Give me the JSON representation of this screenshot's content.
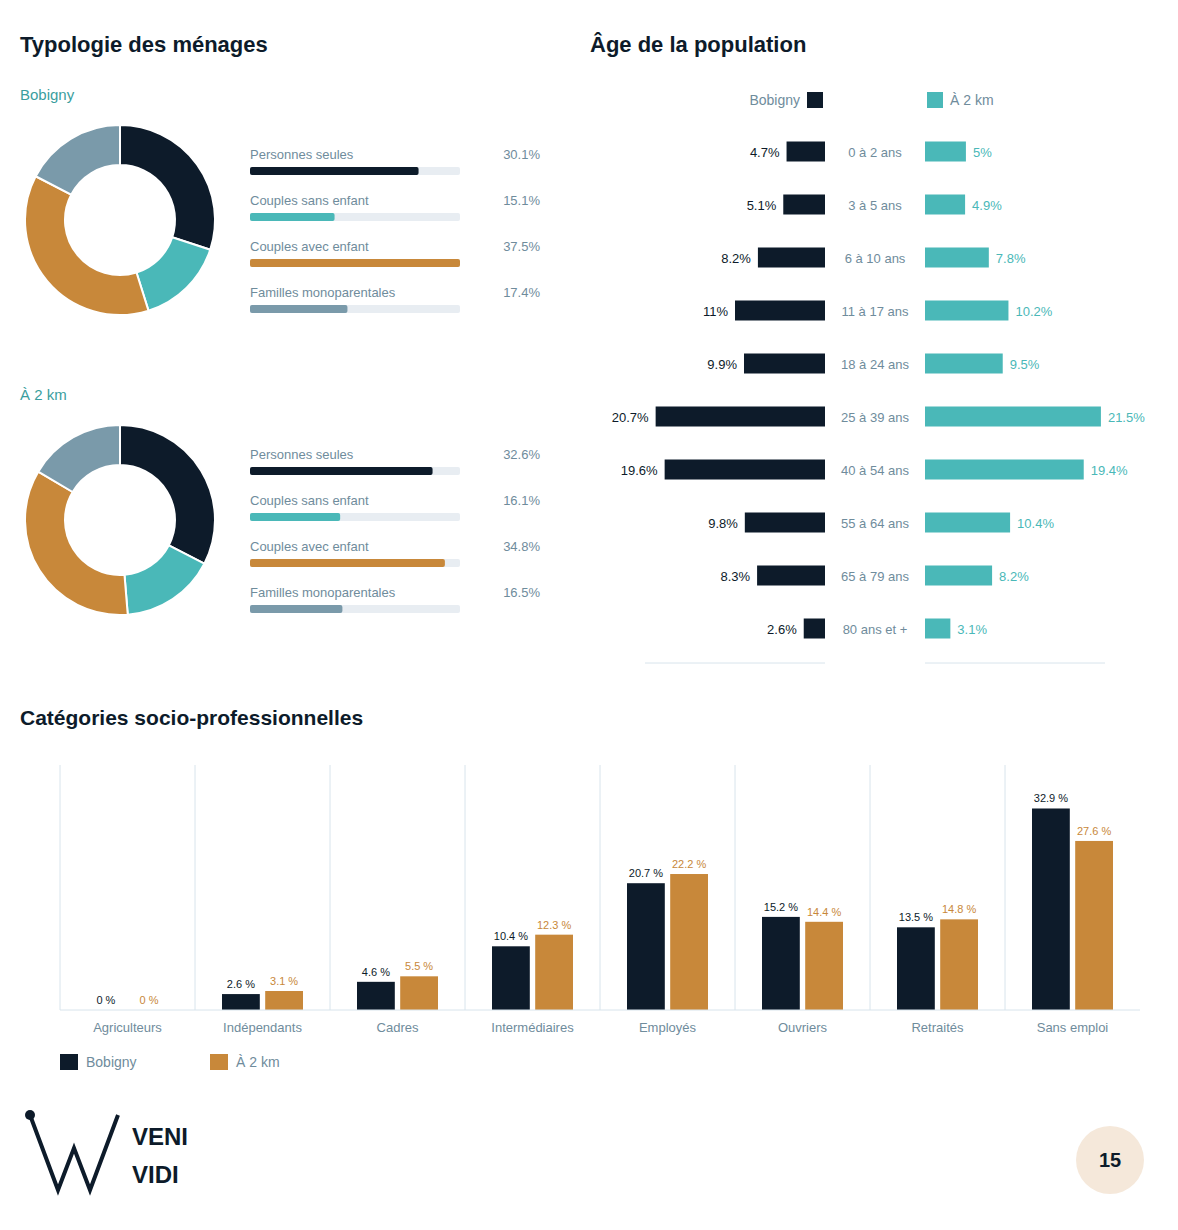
{
  "chart_data": [
    {
      "type": "donut",
      "title": "Typologie des ménages",
      "subtitle": "Bobigny",
      "categories": [
        "Personnes seules",
        "Couples sans enfant",
        "Couples avec enfant",
        "Familles monoparentales"
      ],
      "values": [
        30.1,
        15.1,
        37.5,
        17.4
      ],
      "value_labels": [
        "30.1%",
        "15.1%",
        "37.5%",
        "17.4%"
      ],
      "colors": [
        "#0d1b2a",
        "#4ab8b8",
        "#c8883a",
        "#7a9aaa"
      ],
      "legend": "right",
      "data_labels": true
    },
    {
      "type": "donut",
      "subtitle": "À 2 km",
      "categories": [
        "Personnes seules",
        "Couples sans enfant",
        "Couples avec enfant",
        "Familles monoparentales"
      ],
      "values": [
        32.6,
        16.1,
        34.8,
        16.5
      ],
      "value_labels": [
        "32.6%",
        "16.1%",
        "34.8%",
        "16.5%"
      ],
      "colors": [
        "#0d1b2a",
        "#4ab8b8",
        "#c8883a",
        "#7a9aaa"
      ],
      "legend": "right",
      "data_labels": true
    },
    {
      "type": "bar",
      "orientation": "horizontal",
      "title": "Âge de la population",
      "categories": [
        "0 à 2 ans",
        "3 à 5 ans",
        "6 à 10 ans",
        "11 à 17 ans",
        "18 à 24 ans",
        "25 à 39 ans",
        "40 à 54 ans",
        "55 à 64 ans",
        "65 à 79 ans",
        "80 ans et +"
      ],
      "series": [
        {
          "name": "Bobigny",
          "color": "#0d1b2a",
          "values": [
            4.7,
            5.1,
            8.2,
            11.0,
            9.9,
            20.7,
            19.6,
            9.8,
            8.3,
            2.6
          ],
          "value_labels": [
            "4.7%",
            "5.1%",
            "8.2%",
            "11%",
            "9.9%",
            "20.7%",
            "19.6%",
            "9.8%",
            "8.3%",
            "2.6%"
          ]
        },
        {
          "name": "À 2 km",
          "color": "#4ab8b8",
          "values": [
            5.0,
            4.9,
            7.8,
            10.2,
            9.5,
            21.5,
            19.4,
            10.4,
            8.2,
            3.1
          ],
          "value_labels": [
            "5%",
            "4.9%",
            "7.8%",
            "10.2%",
            "9.5%",
            "21.5%",
            "19.4%",
            "10.4%",
            "8.2%",
            "3.1%"
          ]
        }
      ],
      "xlim": [
        0,
        22
      ],
      "tick_labels": "y",
      "data_labels": true,
      "legend": "top"
    },
    {
      "type": "bar",
      "title": "Catégories socio-professionnelles",
      "categories": [
        "Agriculteurs",
        "Indépendants",
        "Cadres",
        "Intermédiaires",
        "Employés",
        "Ouvriers",
        "Retraités",
        "Sans emploi"
      ],
      "series": [
        {
          "name": "Bobigny",
          "color": "#0d1b2a",
          "values": [
            0.0,
            2.6,
            4.6,
            10.4,
            20.7,
            15.2,
            13.5,
            32.9
          ],
          "value_labels": [
            "0 %",
            "2.6 %",
            "4.6 %",
            "10.4 %",
            "20.7 %",
            "15.2 %",
            "13.5 %",
            "32.9 %"
          ]
        },
        {
          "name": "À 2 km",
          "color": "#c8883a",
          "values": [
            0.0,
            3.1,
            5.5,
            12.3,
            22.2,
            14.4,
            14.8,
            27.6
          ],
          "value_labels": [
            "0 %",
            "3.1 %",
            "5.5 %",
            "12.3 %",
            "22.2 %",
            "14.4 %",
            "14.8 %",
            "27.6 %"
          ]
        }
      ],
      "ylim": [
        0,
        40
      ],
      "tick_labels": "x",
      "data_labels": true,
      "legend": "bottom",
      "annotations": [
        "VENI",
        "VIDI",
        "15"
      ]
    }
  ]
}
